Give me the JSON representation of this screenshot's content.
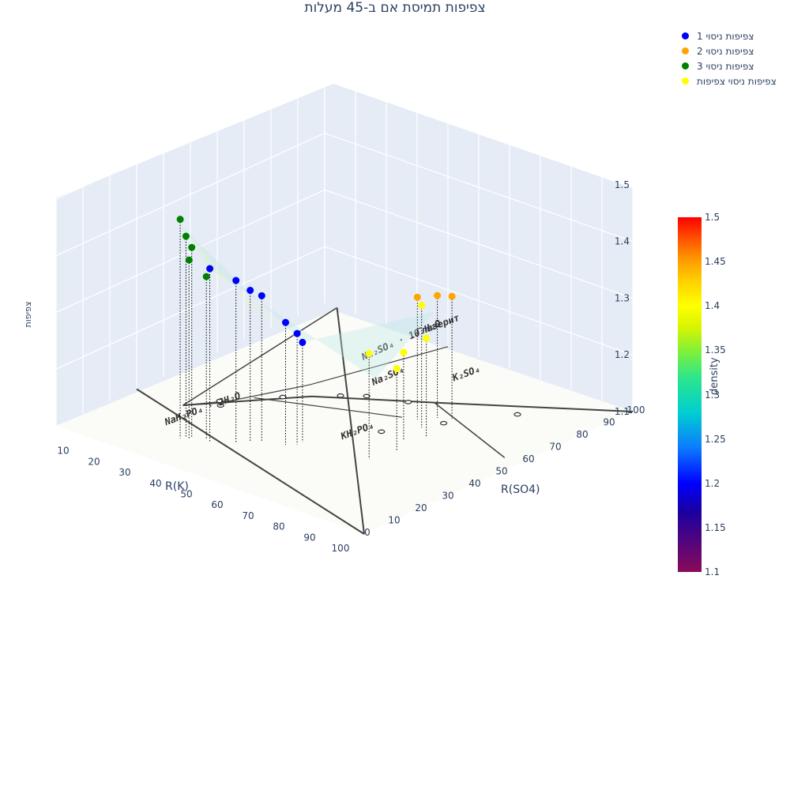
{
  "chart_data": {
    "type": "scatter3d",
    "title": "צפיפות תמיסת אם ב-45 מעלות",
    "axes": {
      "x": {
        "label": "R(K)",
        "range": [
          0,
          100
        ],
        "ticks": [
          "10",
          "20",
          "30",
          "40",
          "50",
          "60",
          "70",
          "80",
          "90",
          "100"
        ]
      },
      "y": {
        "label": "R(SO4)",
        "range": [
          0,
          100
        ],
        "ticks": [
          "0",
          "10",
          "20",
          "30",
          "40",
          "50",
          "60",
          "70",
          "80",
          "90",
          "100"
        ]
      },
      "z": {
        "label": "צפיפות",
        "range": [
          1.1,
          1.5
        ],
        "ticks": [
          "1.1",
          "1.2",
          "1.3",
          "1.4",
          "1.5"
        ]
      }
    },
    "colorbar": {
      "title": "density",
      "range": [
        1.1,
        1.5
      ],
      "ticks": [
        "1.1",
        "1.15",
        "1.2",
        "1.25",
        "1.3",
        "1.35",
        "1.4",
        "1.45",
        "1.5"
      ]
    },
    "phase_diagram_labels": [
      "Na₂SO₄ · 10 H₂O",
      "Na₂SO₄",
      "NaH₂PO₄ · 2H₂O",
      "KH₂PO₄",
      "K₂SO₄",
      "Глазерит"
    ],
    "series": [
      {
        "name": "צפיפות ניסוי 1",
        "color": "#0000ff",
        "x": [
          22,
          27,
          29,
          31,
          37,
          39,
          39
        ],
        "y": [
          32,
          36,
          39,
          41,
          43,
          45,
          47
        ],
        "z": [
          1.35,
          1.33,
          1.31,
          1.3,
          1.26,
          1.24,
          1.22
        ]
      },
      {
        "name": "צפיפות ניסוי 2",
        "color": "#ffa500",
        "x": [
          51,
          54,
          57
        ],
        "y": [
          76,
          80,
          82
        ],
        "z": [
          1.26,
          1.26,
          1.26
        ]
      },
      {
        "name": "צפיפות ניסוי 3",
        "color": "#008000",
        "x": [
          15,
          16,
          17,
          17,
          20
        ],
        "y": [
          29,
          30,
          31,
          30,
          33
        ],
        "z": [
          1.43,
          1.4,
          1.38,
          1.36,
          1.33
        ]
      },
      {
        "name": "צפיפות ניסוי צפיפות",
        "color": "#ffff00",
        "x": [
          58,
          60,
          57,
          60,
          55
        ],
        "y": [
          50,
          58,
          64,
          69,
          73
        ],
        "z": [
          1.23,
          1.19,
          1.2,
          1.22,
          1.26
        ]
      }
    ]
  }
}
